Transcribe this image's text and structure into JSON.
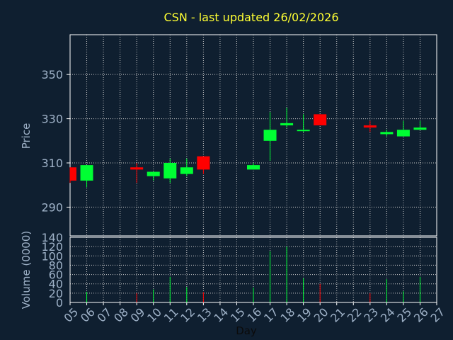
{
  "chart_data": {
    "type": "candlestick",
    "title": "CSN - last updated 26/02/2026",
    "xlabel": "Day",
    "ylabel_price": "Price",
    "ylabel_volume": "Volume (0000)",
    "x_ticks": [
      "05",
      "06",
      "07",
      "08",
      "09",
      "10",
      "11",
      "12",
      "13",
      "14",
      "15",
      "16",
      "17",
      "18",
      "19",
      "20",
      "21",
      "22",
      "23",
      "24",
      "25",
      "26",
      "27"
    ],
    "price_ticks": [
      "290",
      "310",
      "330",
      "350"
    ],
    "price_range": [
      277,
      368
    ],
    "volume_ticks": [
      "0",
      "20",
      "40",
      "60",
      "80",
      "100",
      "120",
      "140"
    ],
    "volume_range": [
      0,
      140
    ],
    "candles": [
      {
        "day": "05",
        "open": 308,
        "close": 302,
        "high": 308,
        "low": 301,
        "volume": 0
      },
      {
        "day": "06",
        "open": 302,
        "close": 309,
        "high": 309,
        "low": 299,
        "volume": 23
      },
      {
        "day": "09",
        "open": 308,
        "close": 307,
        "high": 310,
        "low": 301,
        "volume": 20
      },
      {
        "day": "10",
        "open": 304,
        "close": 306,
        "high": 306,
        "low": 302,
        "volume": 28
      },
      {
        "day": "11",
        "open": 303,
        "close": 310,
        "high": 312,
        "low": 301,
        "volume": 55
      },
      {
        "day": "12",
        "open": 305,
        "close": 308,
        "high": 312,
        "low": 304,
        "volume": 33
      },
      {
        "day": "13",
        "open": 313,
        "close": 307,
        "high": 313,
        "low": 305,
        "volume": 22
      },
      {
        "day": "16",
        "open": 307,
        "close": 309,
        "high": 310,
        "low": 307,
        "volume": 32
      },
      {
        "day": "17",
        "open": 320,
        "close": 325,
        "high": 333,
        "low": 311,
        "volume": 110
      },
      {
        "day": "18",
        "open": 327,
        "close": 328,
        "high": 335,
        "low": 326,
        "volume": 120
      },
      {
        "day": "19",
        "open": 325,
        "close": 325,
        "high": 332,
        "low": 324,
        "volume": 52
      },
      {
        "day": "20",
        "open": 332,
        "close": 327,
        "high": 332,
        "low": 327,
        "volume": 40
      },
      {
        "day": "23",
        "open": 327,
        "close": 326,
        "high": 329,
        "low": 324,
        "volume": 20
      },
      {
        "day": "24",
        "open": 323,
        "close": 324,
        "high": 325,
        "low": 322,
        "volume": 50
      },
      {
        "day": "25",
        "open": 322,
        "close": 325,
        "high": 329,
        "low": 322,
        "volume": 24
      },
      {
        "day": "26",
        "open": 325,
        "close": 326,
        "high": 329,
        "low": 325,
        "volume": 55
      }
    ],
    "colors": {
      "background": "#0f1f30",
      "up": "#00ff33",
      "down": "#ff0000",
      "grid": "#c8c8c8",
      "axis": "#ffffff",
      "title": "#ffff33",
      "label": "#9fb2c8"
    },
    "grid": true
  }
}
